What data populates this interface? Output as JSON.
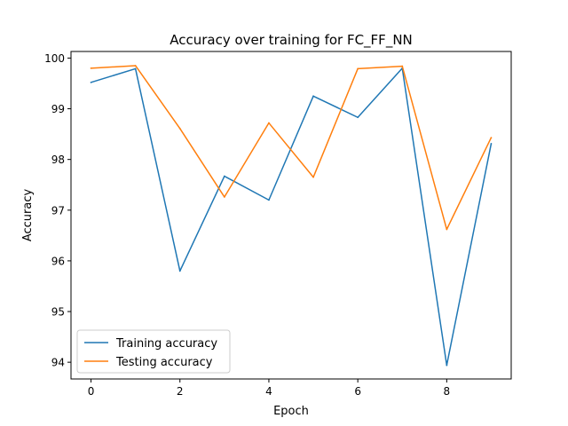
{
  "chart_data": {
    "type": "line",
    "title": "Accuracy over training for FC_FF_NN",
    "xlabel": "Epoch",
    "ylabel": "Accuracy",
    "x": [
      0,
      1,
      2,
      3,
      4,
      5,
      6,
      7,
      8,
      9
    ],
    "xlim": [
      -0.45,
      9.45
    ],
    "ylim": [
      93.67,
      100.13
    ],
    "xticks": [
      0,
      2,
      4,
      6,
      8
    ],
    "yticks": [
      94,
      95,
      96,
      97,
      98,
      99,
      100
    ],
    "grid": false,
    "legend_position": "lower-left",
    "series": [
      {
        "name": "Training accuracy",
        "color": "#1f77b4",
        "values": [
          99.52,
          99.79,
          95.8,
          97.67,
          97.2,
          99.25,
          98.83,
          99.8,
          93.94,
          98.31
        ]
      },
      {
        "name": "Testing accuracy",
        "color": "#ff7f0e",
        "values": [
          99.8,
          99.85,
          98.61,
          97.26,
          98.72,
          97.65,
          99.79,
          99.84,
          96.62,
          98.43
        ]
      }
    ]
  }
}
